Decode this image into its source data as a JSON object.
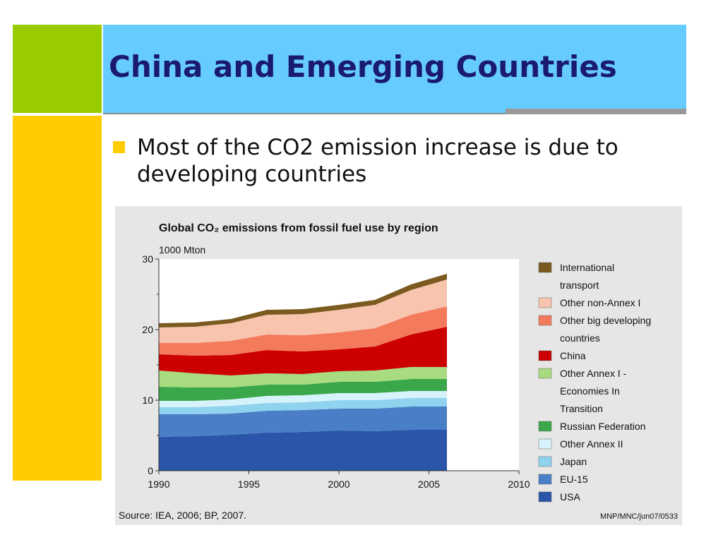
{
  "slide": {
    "title": "China and Emerging Countries",
    "bullet": "Most of the CO2 emission increase is due to developing countries"
  },
  "chart_data": {
    "type": "area",
    "title": "Global CO₂ emissions from fossil fuel use by region",
    "ylabel": "1000 Mton",
    "xlim": [
      1990,
      2010
    ],
    "ylim": [
      0,
      30
    ],
    "yticks": [
      0,
      10,
      20,
      30
    ],
    "xticks": [
      1990,
      1995,
      2000,
      2005,
      2010
    ],
    "source": "Source: IEA, 2006; BP, 2007.",
    "code": "MNP/MNC/jun07/0533",
    "stacked": true,
    "x": [
      1990,
      1992,
      1994,
      1996,
      1998,
      2000,
      2002,
      2004,
      2006
    ],
    "series": [
      {
        "name": "USA",
        "color": "#2a55a8",
        "values": [
          4.8,
          4.9,
          5.1,
          5.4,
          5.5,
          5.7,
          5.6,
          5.8,
          5.8
        ]
      },
      {
        "name": "EU-15",
        "color": "#4a7fc8",
        "values": [
          3.2,
          3.1,
          3.0,
          3.1,
          3.1,
          3.1,
          3.2,
          3.3,
          3.3
        ]
      },
      {
        "name": "Japan",
        "color": "#8fd3ee",
        "values": [
          1.0,
          1.0,
          1.1,
          1.1,
          1.1,
          1.2,
          1.2,
          1.2,
          1.2
        ]
      },
      {
        "name": "Other Annex II",
        "color": "#d6f2fb",
        "values": [
          0.9,
          0.9,
          0.9,
          1.0,
          1.0,
          1.0,
          1.0,
          1.0,
          1.0
        ]
      },
      {
        "name": "Russian Federation",
        "color": "#3aa84a",
        "values": [
          2.0,
          1.9,
          1.7,
          1.6,
          1.5,
          1.6,
          1.6,
          1.7,
          1.7
        ]
      },
      {
        "name": "Other Annex I - Economies In Transition",
        "color": "#a9db80",
        "values": [
          2.3,
          2.0,
          1.7,
          1.6,
          1.5,
          1.5,
          1.6,
          1.7,
          1.7
        ]
      },
      {
        "name": "China",
        "color": "#cc0000",
        "values": [
          2.3,
          2.5,
          2.9,
          3.3,
          3.2,
          3.1,
          3.4,
          4.6,
          5.7
        ]
      },
      {
        "name": "Other big developing countries",
        "color": "#f47a5c",
        "values": [
          1.6,
          1.8,
          2.0,
          2.2,
          2.3,
          2.4,
          2.6,
          2.8,
          2.9
        ]
      },
      {
        "name": "Other non-Annex I",
        "color": "#f8c4ae",
        "values": [
          2.2,
          2.3,
          2.5,
          2.8,
          3.0,
          3.2,
          3.3,
          3.5,
          3.8
        ]
      },
      {
        "name": "International transport",
        "color": "#7a5a1e",
        "values": [
          0.6,
          0.6,
          0.6,
          0.7,
          0.7,
          0.7,
          0.7,
          0.8,
          0.8
        ]
      }
    ],
    "legend": [
      {
        "label": "International transport",
        "color": "#7a5a1e"
      },
      {
        "label": "Other non-Annex I",
        "color": "#f8c4ae"
      },
      {
        "label": "Other big developing countries",
        "color": "#f47a5c"
      },
      {
        "label": "China",
        "color": "#cc0000"
      },
      {
        "label": "Other Annex I - Economies In Transition",
        "color": "#a9db80"
      },
      {
        "label": "Russian Federation",
        "color": "#3aa84a"
      },
      {
        "label": "Other Annex II",
        "color": "#d6f2fb"
      },
      {
        "label": "Japan",
        "color": "#8fd3ee"
      },
      {
        "label": "EU-15",
        "color": "#4a7fc8"
      },
      {
        "label": "USA",
        "color": "#2a55a8"
      }
    ]
  }
}
